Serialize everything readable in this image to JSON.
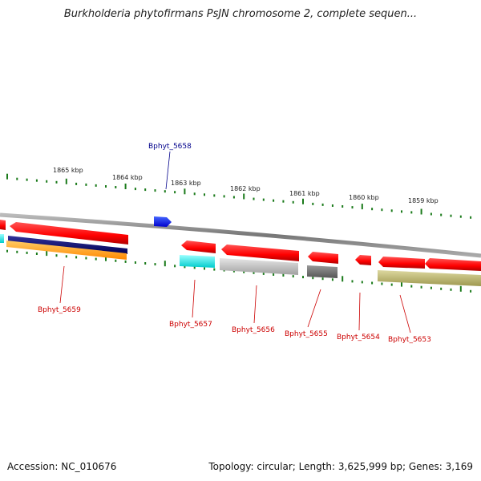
{
  "title": "Burkholderia phytofirmans PsJN chromosome 2, complete sequen...",
  "footer": {
    "accession": "Accession: NC_010676",
    "summary": "Topology: circular; Length: 3,625,999 bp; Genes: 3,169"
  },
  "colors": {
    "tick": "#1a7a1a",
    "forward_label": "#00008b",
    "reverse_label": "#cc0000",
    "backbone": "#888888"
  },
  "scale_labels": [
    "1865 kbp",
    "1864 kbp",
    "1863 kbp",
    "1862 kbp",
    "1861 kbp",
    "1860 kbp",
    "1859 kbp"
  ],
  "genes": [
    {
      "name": "Bphyt_5659",
      "strand": "reverse"
    },
    {
      "name": "Bphyt_5658",
      "strand": "forward"
    },
    {
      "name": "Bphyt_5657",
      "strand": "reverse"
    },
    {
      "name": "Bphyt_5656",
      "strand": "reverse"
    },
    {
      "name": "Bphyt_5655",
      "strand": "reverse"
    },
    {
      "name": "Bphyt_5654",
      "strand": "reverse"
    },
    {
      "name": "Bphyt_5653",
      "strand": "reverse"
    }
  ],
  "features": [
    {
      "type": "gene-arrow",
      "color": "#ff0000"
    },
    {
      "type": "gene-arrow",
      "color": "#0000ff"
    },
    {
      "type": "cds-bar",
      "color": "#00ffff"
    },
    {
      "type": "cds-bar",
      "color": "#000080"
    },
    {
      "type": "cds-bar",
      "color": "#ffa500"
    },
    {
      "type": "cds-bar",
      "color": "#c0c0c0"
    },
    {
      "type": "cds-bar",
      "color": "#808080"
    },
    {
      "type": "cds-bar",
      "color": "#bdb76b"
    }
  ]
}
